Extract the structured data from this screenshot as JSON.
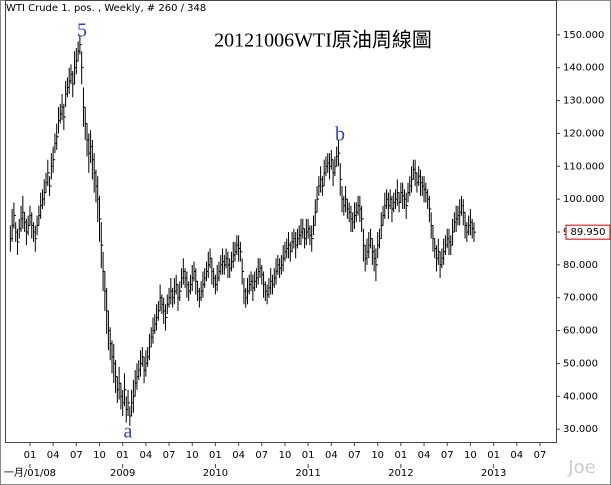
{
  "chart_data": {
    "type": "ohlc",
    "header": "WTI Crude 1. pos. , Weekly, # 260 / 348",
    "title": "20121006WTI原油周線圖",
    "watermark": "Joe",
    "annotations": [
      "5",
      "b",
      "a"
    ],
    "last_value_label": "89.950",
    "last_value_color": "#cc0000",
    "color": "#000000",
    "xlim": [
      -3,
      306
    ],
    "ylim": [
      26.1,
      160.6
    ],
    "yticks": [
      {
        "value": 30,
        "label": "30.000"
      },
      {
        "value": 40,
        "label": "40.000"
      },
      {
        "value": 50,
        "label": "50.000"
      },
      {
        "value": 60,
        "label": "60.000"
      },
      {
        "value": 70,
        "label": "70.000"
      },
      {
        "value": 80,
        "label": "80.000"
      },
      {
        "value": 90,
        "label": "90.000"
      },
      {
        "value": 100,
        "label": "100.000"
      },
      {
        "value": 110,
        "label": "110.000"
      },
      {
        "value": 120,
        "label": "120.000"
      },
      {
        "value": 130,
        "label": "130.000"
      },
      {
        "value": 140,
        "label": "140.000"
      },
      {
        "value": 150,
        "label": "150.000"
      }
    ],
    "xticks": [
      {
        "value": 11,
        "label": "01"
      },
      {
        "value": 24,
        "label": "04"
      },
      {
        "value": 37,
        "label": "07"
      },
      {
        "value": 50,
        "label": "10"
      },
      {
        "value": 63,
        "label": "01"
      },
      {
        "value": 76,
        "label": "04"
      },
      {
        "value": 89,
        "label": "07"
      },
      {
        "value": 102,
        "label": "10"
      },
      {
        "value": 115,
        "label": "01"
      },
      {
        "value": 128,
        "label": "04"
      },
      {
        "value": 141,
        "label": "07"
      },
      {
        "value": 154,
        "label": "10"
      },
      {
        "value": 167,
        "label": "01"
      },
      {
        "value": 180,
        "label": "04"
      },
      {
        "value": 193,
        "label": "07"
      },
      {
        "value": 206,
        "label": "10"
      },
      {
        "value": 219,
        "label": "01"
      },
      {
        "value": 232,
        "label": "04"
      },
      {
        "value": 245,
        "label": "07"
      },
      {
        "value": 258,
        "label": "10"
      },
      {
        "value": 271,
        "label": "01"
      },
      {
        "value": 284,
        "label": "04"
      },
      {
        "value": 297,
        "label": "07"
      }
    ],
    "year_ticks": [
      {
        "value": 11,
        "label": "一月/01/08"
      },
      {
        "value": 63,
        "label": "2009"
      },
      {
        "value": 115,
        "label": "2010"
      },
      {
        "value": 167,
        "label": "2011"
      },
      {
        "value": 219,
        "label": "2012"
      },
      {
        "value": 271,
        "label": "2013"
      }
    ],
    "series": [
      {
        "name": "WTI Crude",
        "values": [
          88,
          92,
          95,
          90,
          87,
          91,
          94,
          96,
          93,
          90,
          92,
          95,
          92,
          90,
          88,
          92,
          95,
          98,
          100,
          102,
          105,
          108,
          104,
          110,
          112,
          117,
          119,
          124,
          126,
          128,
          125,
          132,
          134,
          136,
          138,
          135,
          140,
          142,
          145,
          147,
          140,
          128,
          123,
          118,
          114,
          116,
          112,
          108,
          104,
          100,
          94,
          86,
          78,
          72,
          66,
          60,
          56,
          52,
          50,
          46,
          42,
          44,
          40,
          38,
          42,
          36,
          38,
          34,
          38,
          40,
          44,
          46,
          48,
          50,
          52,
          48,
          50,
          52,
          55,
          58,
          60,
          62,
          64,
          66,
          70,
          68,
          66,
          64,
          68,
          70,
          72,
          70,
          72,
          74,
          70,
          72,
          76,
          78,
          76,
          74,
          72,
          74,
          76,
          78,
          75,
          72,
          70,
          72,
          74,
          76,
          78,
          80,
          82,
          78,
          76,
          74,
          76,
          78,
          80,
          81,
          80,
          82,
          80,
          79,
          81,
          83,
          84,
          86,
          85,
          84,
          78,
          72,
          70,
          72,
          74,
          75,
          73,
          75,
          76,
          78,
          79,
          77,
          74,
          72,
          71,
          73,
          75,
          74,
          76,
          78,
          80,
          79,
          80,
          82,
          84,
          85,
          86,
          84,
          87,
          88,
          86,
          88,
          89,
          90,
          91,
          88,
          90,
          91,
          89,
          88,
          92,
          96,
          100,
          104,
          106,
          104,
          108,
          110,
          111,
          110,
          112,
          108,
          110,
          113,
          114,
          106,
          100,
          98,
          100,
          97,
          96,
          94,
          93,
          95,
          96,
          98,
          97,
          94,
          86,
          82,
          84,
          86,
          88,
          84,
          82,
          80,
          86,
          88,
          92,
          95,
          98,
          100,
          98,
          100,
          97,
          99,
          100,
          102,
          99,
          102,
          101,
          100,
          98,
          102,
          104,
          106,
          109,
          108,
          105,
          107,
          105,
          104,
          103,
          102,
          100,
          97,
          92,
          88,
          85,
          82,
          84,
          80,
          82,
          84,
          86,
          88,
          87,
          86,
          90,
          93,
          94,
          95,
          96,
          98,
          96,
          92,
          90,
          92,
          93,
          91,
          89.95
        ],
        "ranges": [
          4,
          5,
          4,
          3,
          4,
          3,
          4,
          5,
          3,
          4,
          3,
          3,
          4,
          3,
          4,
          3,
          3,
          4,
          3,
          4,
          3,
          4,
          3,
          4,
          4,
          3,
          4,
          4,
          3,
          4,
          4,
          4,
          3,
          4,
          3,
          4,
          5,
          4,
          3,
          3,
          5,
          6,
          5,
          5,
          6,
          5,
          6,
          6,
          5,
          7,
          7,
          7,
          6,
          6,
          7,
          6,
          5,
          5,
          6,
          5,
          4,
          5,
          4,
          4,
          5,
          4,
          4,
          3,
          4,
          5,
          4,
          4,
          3,
          4,
          3,
          4,
          4,
          3,
          4,
          3,
          4,
          3,
          4,
          3,
          4,
          3,
          4,
          4,
          3,
          3,
          4,
          3,
          4,
          3,
          4,
          3,
          3,
          4,
          3,
          4,
          3,
          3,
          4,
          3,
          4,
          3,
          3,
          3,
          4,
          3,
          3,
          4,
          3,
          4,
          3,
          3,
          4,
          3,
          3,
          4,
          3,
          3,
          4,
          3,
          3,
          4,
          3,
          3,
          4,
          3,
          4,
          4,
          3,
          4,
          3,
          3,
          4,
          3,
          3,
          4,
          3,
          3,
          4,
          3,
          3,
          3,
          4,
          3,
          3,
          4,
          3,
          3,
          3,
          4,
          3,
          3,
          4,
          3,
          3,
          3,
          4,
          3,
          3,
          4,
          3,
          3,
          4,
          3,
          3,
          4,
          3,
          4,
          4,
          3,
          4,
          3,
          4,
          3,
          3,
          4,
          3,
          4,
          3,
          3,
          4,
          5,
          4,
          3,
          4,
          3,
          3,
          4,
          3,
          4,
          3,
          3,
          4,
          4,
          5,
          4,
          4,
          4,
          3,
          4,
          4,
          5,
          4,
          3,
          4,
          3,
          4,
          3,
          4,
          3,
          4,
          3,
          3,
          4,
          3,
          3,
          4,
          3,
          4,
          3,
          3,
          4,
          3,
          4,
          3,
          3,
          4,
          3,
          4,
          3,
          3,
          4,
          4,
          4,
          3,
          4,
          4,
          4,
          3,
          4,
          3,
          3,
          4,
          3,
          4,
          3,
          4,
          3,
          4,
          3,
          4,
          4,
          3,
          3,
          4,
          3,
          3
        ]
      }
    ]
  }
}
